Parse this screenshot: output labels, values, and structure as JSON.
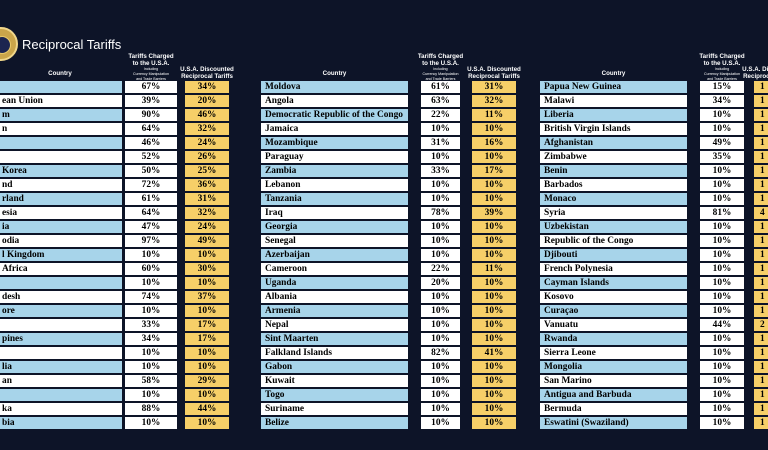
{
  "title": "Reciprocal Tariffs",
  "headers": {
    "country": "Country",
    "charged_line1": "Tariffs Charged",
    "charged_line2": "to the U.S.A.",
    "charged_line3": "Including",
    "charged_line4": "Currency Manipulation",
    "charged_line5": "and Trade Barriers",
    "discounted_line1": "U.S.A. Discounted",
    "discounted_line2": "Reciprocal Tariffs"
  },
  "colors": {
    "background": "#0d1428",
    "country_blue": "#a7d4ea",
    "discount_yellow": "#f6cf68"
  },
  "columns": [
    {
      "rows": [
        {
          "country": "",
          "charged": "67%",
          "discounted": "34%"
        },
        {
          "country": "ean Union",
          "charged": "39%",
          "discounted": "20%"
        },
        {
          "country": "m",
          "charged": "90%",
          "discounted": "46%"
        },
        {
          "country": "n",
          "charged": "64%",
          "discounted": "32%"
        },
        {
          "country": "",
          "charged": "46%",
          "discounted": "24%"
        },
        {
          "country": "",
          "charged": "52%",
          "discounted": "26%"
        },
        {
          "country": "Korea",
          "charged": "50%",
          "discounted": "25%"
        },
        {
          "country": "nd",
          "charged": "72%",
          "discounted": "36%"
        },
        {
          "country": "rland",
          "charged": "61%",
          "discounted": "31%"
        },
        {
          "country": "esia",
          "charged": "64%",
          "discounted": "32%"
        },
        {
          "country": "ia",
          "charged": "47%",
          "discounted": "24%"
        },
        {
          "country": "odia",
          "charged": "97%",
          "discounted": "49%"
        },
        {
          "country": "l Kingdom",
          "charged": "10%",
          "discounted": "10%"
        },
        {
          "country": "Africa",
          "charged": "60%",
          "discounted": "30%"
        },
        {
          "country": "",
          "charged": "10%",
          "discounted": "10%"
        },
        {
          "country": "desh",
          "charged": "74%",
          "discounted": "37%"
        },
        {
          "country": "ore",
          "charged": "10%",
          "discounted": "10%"
        },
        {
          "country": "",
          "charged": "33%",
          "discounted": "17%"
        },
        {
          "country": "pines",
          "charged": "34%",
          "discounted": "17%"
        },
        {
          "country": "",
          "charged": "10%",
          "discounted": "10%"
        },
        {
          "country": "lia",
          "charged": "10%",
          "discounted": "10%"
        },
        {
          "country": "an",
          "charged": "58%",
          "discounted": "29%"
        },
        {
          "country": "",
          "charged": "10%",
          "discounted": "10%"
        },
        {
          "country": "ka",
          "charged": "88%",
          "discounted": "44%"
        },
        {
          "country": "bia",
          "charged": "10%",
          "discounted": "10%"
        }
      ]
    },
    {
      "rows": [
        {
          "country": "Moldova",
          "charged": "61%",
          "discounted": "31%"
        },
        {
          "country": "Angola",
          "charged": "63%",
          "discounted": "32%"
        },
        {
          "country": "Democratic Republic of the Congo",
          "charged": "22%",
          "discounted": "11%"
        },
        {
          "country": "Jamaica",
          "charged": "10%",
          "discounted": "10%"
        },
        {
          "country": "Mozambique",
          "charged": "31%",
          "discounted": "16%"
        },
        {
          "country": "Paraguay",
          "charged": "10%",
          "discounted": "10%"
        },
        {
          "country": "Zambia",
          "charged": "33%",
          "discounted": "17%"
        },
        {
          "country": "Lebanon",
          "charged": "10%",
          "discounted": "10%"
        },
        {
          "country": "Tanzania",
          "charged": "10%",
          "discounted": "10%"
        },
        {
          "country": "Iraq",
          "charged": "78%",
          "discounted": "39%"
        },
        {
          "country": "Georgia",
          "charged": "10%",
          "discounted": "10%"
        },
        {
          "country": "Senegal",
          "charged": "10%",
          "discounted": "10%"
        },
        {
          "country": "Azerbaijan",
          "charged": "10%",
          "discounted": "10%"
        },
        {
          "country": "Cameroon",
          "charged": "22%",
          "discounted": "11%"
        },
        {
          "country": "Uganda",
          "charged": "20%",
          "discounted": "10%"
        },
        {
          "country": "Albania",
          "charged": "10%",
          "discounted": "10%"
        },
        {
          "country": "Armenia",
          "charged": "10%",
          "discounted": "10%"
        },
        {
          "country": "Nepal",
          "charged": "10%",
          "discounted": "10%"
        },
        {
          "country": "Sint Maarten",
          "charged": "10%",
          "discounted": "10%"
        },
        {
          "country": "Falkland Islands",
          "charged": "82%",
          "discounted": "41%"
        },
        {
          "country": "Gabon",
          "charged": "10%",
          "discounted": "10%"
        },
        {
          "country": "Kuwait",
          "charged": "10%",
          "discounted": "10%"
        },
        {
          "country": "Togo",
          "charged": "10%",
          "discounted": "10%"
        },
        {
          "country": "Suriname",
          "charged": "10%",
          "discounted": "10%"
        },
        {
          "country": "Belize",
          "charged": "10%",
          "discounted": "10%"
        }
      ]
    },
    {
      "rows": [
        {
          "country": "Papua New Guinea",
          "charged": "15%",
          "discounted": "1"
        },
        {
          "country": "Malawi",
          "charged": "34%",
          "discounted": "1"
        },
        {
          "country": "Liberia",
          "charged": "10%",
          "discounted": "1"
        },
        {
          "country": "British Virgin Islands",
          "charged": "10%",
          "discounted": "1"
        },
        {
          "country": "Afghanistan",
          "charged": "49%",
          "discounted": "1"
        },
        {
          "country": "Zimbabwe",
          "charged": "35%",
          "discounted": "1"
        },
        {
          "country": "Benin",
          "charged": "10%",
          "discounted": "1"
        },
        {
          "country": "Barbados",
          "charged": "10%",
          "discounted": "1"
        },
        {
          "country": "Monaco",
          "charged": "10%",
          "discounted": "1"
        },
        {
          "country": "Syria",
          "charged": "81%",
          "discounted": "4"
        },
        {
          "country": "Uzbekistan",
          "charged": "10%",
          "discounted": "1"
        },
        {
          "country": "Republic of the Congo",
          "charged": "10%",
          "discounted": "1"
        },
        {
          "country": "Djibouti",
          "charged": "10%",
          "discounted": "1"
        },
        {
          "country": "French Polynesia",
          "charged": "10%",
          "discounted": "1"
        },
        {
          "country": "Cayman Islands",
          "charged": "10%",
          "discounted": "1"
        },
        {
          "country": "Kosovo",
          "charged": "10%",
          "discounted": "1"
        },
        {
          "country": "Curaçao",
          "charged": "10%",
          "discounted": "1"
        },
        {
          "country": "Vanuatu",
          "charged": "44%",
          "discounted": "2"
        },
        {
          "country": "Rwanda",
          "charged": "10%",
          "discounted": "1"
        },
        {
          "country": "Sierra Leone",
          "charged": "10%",
          "discounted": "1"
        },
        {
          "country": "Mongolia",
          "charged": "10%",
          "discounted": "1"
        },
        {
          "country": "San Marino",
          "charged": "10%",
          "discounted": "1"
        },
        {
          "country": "Antigua and Barbuda",
          "charged": "10%",
          "discounted": "1"
        },
        {
          "country": "Bermuda",
          "charged": "10%",
          "discounted": "1"
        },
        {
          "country": "Eswatini (Swaziland)",
          "charged": "10%",
          "discounted": "1"
        }
      ]
    }
  ]
}
